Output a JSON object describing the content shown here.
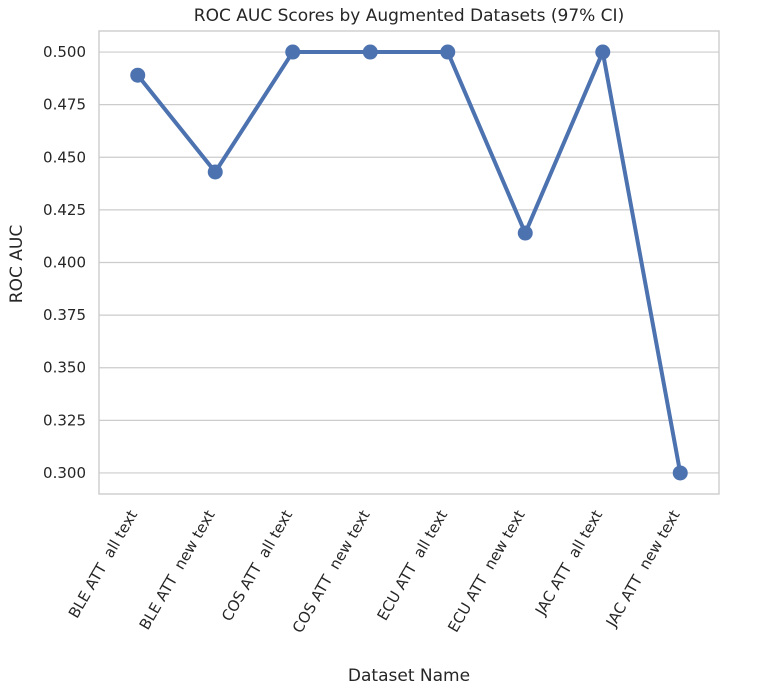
{
  "chart_data": {
    "type": "line",
    "title": "ROC AUC Scores by Augmented Datasets (97% CI)",
    "xlabel": "Dataset Name",
    "ylabel": "ROC AUC",
    "categories": [
      "BLE ATT  all text",
      "BLE ATT  new text",
      "COS ATT  all text",
      "COS ATT  new text",
      "ECU ATT  all text",
      "ECU ATT  new text",
      "JAC ATT  all text",
      "JAC ATT  new text"
    ],
    "series": [
      {
        "values": [
          0.489,
          0.443,
          0.5,
          0.5,
          0.5,
          0.414,
          0.5,
          0.3
        ],
        "color": "#4c72b0"
      }
    ],
    "ylim": [
      0.29,
      0.51
    ],
    "yticks": [
      "0.300",
      "0.325",
      "0.350",
      "0.375",
      "0.400",
      "0.425",
      "0.450",
      "0.475",
      "0.500"
    ],
    "grid": true,
    "legend": "none"
  }
}
